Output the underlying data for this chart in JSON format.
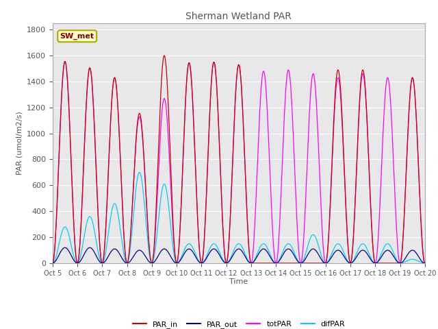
{
  "title": "Sherman Wetland PAR",
  "ylabel": "PAR (umol/m2/s)",
  "xlabel": "Time",
  "annotation": "SW_met",
  "ylim": [
    0,
    1850
  ],
  "yticks": [
    0,
    200,
    400,
    600,
    800,
    1000,
    1200,
    1400,
    1600,
    1800
  ],
  "background_color": "#e8e8e8",
  "colors": {
    "PAR_in": "#cc0000",
    "PAR_out": "#000099",
    "totPAR": "#ff00ff",
    "difPAR": "#00ccff"
  },
  "legend_labels": [
    "PAR_in",
    "PAR_out",
    "totPAR",
    "difPAR"
  ],
  "n_days": 15,
  "start_day": 5,
  "peaks_PAR_in": [
    1555,
    1505,
    1430,
    1155,
    1600,
    1545,
    1550,
    1530,
    0,
    0,
    0,
    1490,
    1490,
    0,
    1430
  ],
  "peaks_totPAR": [
    1555,
    1505,
    1430,
    1130,
    1270,
    1545,
    1550,
    1530,
    1480,
    1490,
    1460,
    1430,
    1460,
    1430,
    1430
  ],
  "peaks_PAR_out": [
    120,
    120,
    110,
    100,
    110,
    110,
    110,
    110,
    110,
    110,
    110,
    100,
    100,
    100,
    100
  ],
  "peaks_difPAR": [
    280,
    360,
    460,
    700,
    610,
    150,
    150,
    150,
    150,
    150,
    220,
    150,
    150,
    150,
    30
  ],
  "x_tick_labels": [
    "Oct 5",
    "Oct 6",
    "Oct 7",
    "Oct 8",
    "Oct 9",
    "Oct 10",
    "Oct 11",
    "Oct 12",
    "Oct 13",
    "Oct 14",
    "Oct 15",
    "Oct 16",
    "Oct 17",
    "Oct 18",
    "Oct 19",
    "Oct 20"
  ]
}
